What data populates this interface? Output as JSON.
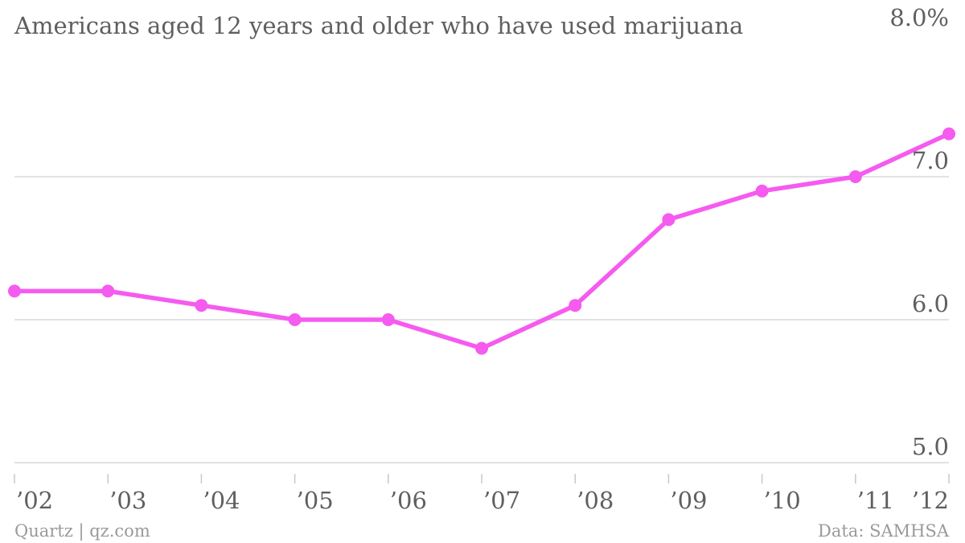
{
  "chart_data": {
    "type": "line",
    "title": "Americans aged 12 years and older who have used marijuana",
    "categories": [
      "’02",
      "’03",
      "’04",
      "’05",
      "’06",
      "’07",
      "’08",
      "’09",
      "’10",
      "’11",
      "’12"
    ],
    "series": [
      {
        "values": [
          6.2,
          6.2,
          6.1,
          6.0,
          6.0,
          5.8,
          6.1,
          6.7,
          6.9,
          7.0,
          7.3
        ]
      }
    ],
    "ylim": [
      5.0,
      8.0
    ],
    "yticks": [
      5.0,
      6.0,
      7.0,
      8.0
    ],
    "ytick_labels": [
      "5.0",
      "6.0",
      "7.0",
      "8.0%"
    ],
    "grid": true,
    "line_color": "#f55bef"
  },
  "footer": {
    "left": "Quartz | qz.com",
    "right": "Data: SAMHSA"
  }
}
